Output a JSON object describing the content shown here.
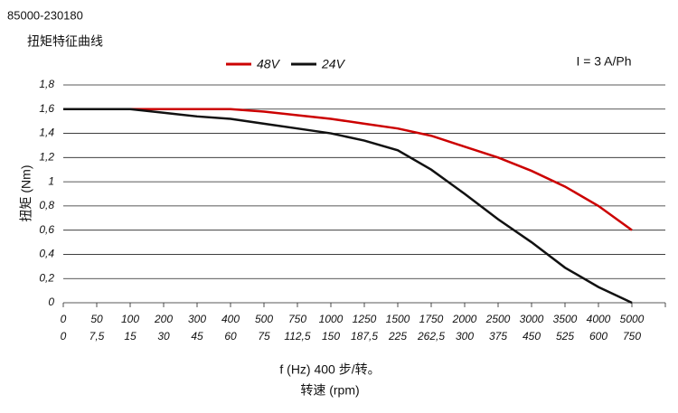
{
  "chart_data": {
    "type": "line",
    "part_number": "85000-230180",
    "title": "扭矩特征曲线",
    "annotation": "I = 3 A/Ph",
    "y_label": "扭矩 (Nm)",
    "x_label": "f (Hz) 400 步/转。",
    "x2_label": "转速 (rpm)",
    "categories": [
      "0",
      "50",
      "100",
      "200",
      "300",
      "400",
      "500",
      "750",
      "1000",
      "1250",
      "1500",
      "1750",
      "2000",
      "2500",
      "3000",
      "3500",
      "4000",
      "5000"
    ],
    "categories2": [
      "0",
      "7,5",
      "15",
      "30",
      "45",
      "60",
      "75",
      "112,5",
      "150",
      "187,5",
      "225",
      "262,5",
      "300",
      "375",
      "450",
      "525",
      "600",
      "750"
    ],
    "series": [
      {
        "name": "48V",
        "color": "#cc0000",
        "values": [
          1.6,
          1.6,
          1.6,
          1.6,
          1.6,
          1.6,
          1.58,
          1.55,
          1.52,
          1.48,
          1.44,
          1.38,
          1.29,
          1.2,
          1.09,
          0.96,
          0.8,
          0.6
        ]
      },
      {
        "name": "24V",
        "color": "#111111",
        "values": [
          1.6,
          1.6,
          1.6,
          1.57,
          1.54,
          1.52,
          1.48,
          1.44,
          1.4,
          1.34,
          1.26,
          1.1,
          0.9,
          0.69,
          0.5,
          0.29,
          0.13,
          0
        ]
      }
    ],
    "ylim": [
      0,
      1.8
    ],
    "yticks": [
      0,
      {
        "value": 0.2,
        "label": "0,2"
      },
      {
        "value": 0.4,
        "label": "0,4"
      },
      {
        "value": 0.6,
        "label": "0,6"
      },
      {
        "value": 0.8,
        "label": "0,8"
      },
      1,
      {
        "value": 1.2,
        "label": "1,2"
      },
      {
        "value": 1.4,
        "label": "1,4"
      },
      {
        "value": 1.6,
        "label": "1,6"
      },
      {
        "value": 1.8,
        "label": "1,8"
      }
    ],
    "grid": true
  }
}
